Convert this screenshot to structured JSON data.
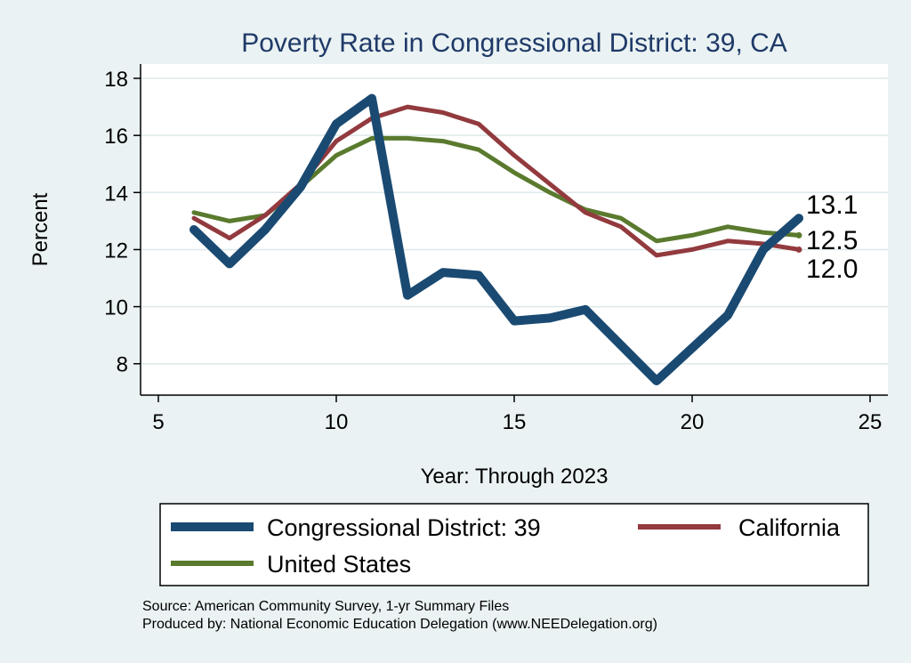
{
  "chart_data": {
    "type": "line",
    "title": "Poverty Rate in Congressional District:  39, CA",
    "xlabel": "Year: Through 2023",
    "ylabel": "Percent",
    "xlim": [
      4.5,
      25.5
    ],
    "ylim": [
      6.9,
      18.5
    ],
    "xticks": [
      5,
      10,
      15,
      20,
      25
    ],
    "yticks": [
      8,
      10,
      12,
      14,
      16,
      18
    ],
    "grid": true,
    "series": [
      {
        "name": "Congressional District:  39",
        "color": "#1a4a72",
        "x": [
          6,
          7,
          8,
          9,
          10,
          11,
          12,
          13,
          14,
          15,
          16,
          17,
          19,
          21,
          22,
          23
        ],
        "y": [
          12.7,
          11.5,
          12.7,
          14.2,
          16.4,
          17.3,
          10.4,
          11.2,
          11.1,
          9.5,
          9.6,
          9.9,
          7.4,
          9.7,
          12.0,
          13.1
        ],
        "end_label": "13.1"
      },
      {
        "name": "California",
        "color": "#923a3e",
        "x": [
          6,
          7,
          8,
          9,
          10,
          11,
          12,
          13,
          14,
          15,
          16,
          17,
          18,
          19,
          20,
          21,
          22,
          23
        ],
        "y": [
          13.1,
          12.4,
          13.2,
          14.3,
          15.8,
          16.6,
          17.0,
          16.8,
          16.4,
          15.3,
          14.3,
          13.3,
          12.8,
          11.8,
          12.0,
          12.3,
          12.2,
          12.0
        ],
        "end_label": "12.0"
      },
      {
        "name": "United States",
        "color": "#5a7a2e",
        "x": [
          6,
          7,
          8,
          9,
          10,
          11,
          12,
          13,
          14,
          15,
          16,
          17,
          18,
          19,
          20,
          21,
          22,
          23
        ],
        "y": [
          13.3,
          13.0,
          13.2,
          14.2,
          15.3,
          15.9,
          15.9,
          15.8,
          15.5,
          14.7,
          14.0,
          13.4,
          13.1,
          12.3,
          12.5,
          12.8,
          12.6,
          12.5
        ],
        "end_label": "12.5"
      }
    ],
    "legend": {
      "items": [
        "Congressional District:  39",
        "California",
        "United States"
      ]
    },
    "source_lines": [
      "Source: American Community Survey, 1-yr Summary Files",
      "Produced by: National Economic Education Delegation (www.NEEDelegation.org)"
    ]
  }
}
